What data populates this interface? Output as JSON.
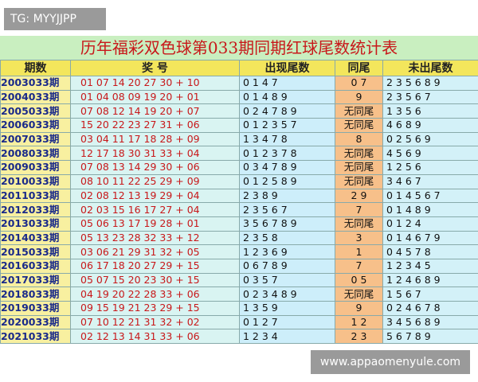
{
  "watermark_top": "TG: MYYJJPP",
  "watermark_bottom": "www.appaomenyule.com",
  "table": {
    "title": "历年福彩双色球第033期同期红球尾数统计表",
    "headers": [
      "期数",
      "奖 号",
      "出现尾数",
      "同尾",
      "未出尾数"
    ],
    "rows": [
      [
        "2003033期",
        "01 07 14 20 27 30 + 10",
        "0 1 4 7",
        "0 7",
        "2 3 5 6 8 9"
      ],
      [
        "2004033期",
        "01 04 08 09 19 20 + 01",
        "0 1 4 8 9",
        "9",
        "2 3 5 6 7"
      ],
      [
        "2005033期",
        "07 08 12 14 19 20 + 07",
        "0 2 4 7 8 9",
        "无同尾",
        "1 3 5 6"
      ],
      [
        "2006033期",
        "15 20 22 23 27 31 + 06",
        "0 1 2 3 5 7",
        "无同尾",
        "4 6 8 9"
      ],
      [
        "2007033期",
        "03 04 11 17 18 28 + 09",
        "1 3 4 7 8",
        "8",
        "0 2 5 6 9"
      ],
      [
        "2008033期",
        "12 17 18 30 31 33 + 04",
        "0 1 2 3 7 8",
        "无同尾",
        "4 5 6 9"
      ],
      [
        "2009033期",
        "07 08 13 14 29 30 + 06",
        "0 3 4 7 8 9",
        "无同尾",
        "1 2 5 6"
      ],
      [
        "2010033期",
        "08 10 11 22 25 29 + 09",
        "0 1 2 5 8 9",
        "无同尾",
        "3 4 6 7"
      ],
      [
        "2011033期",
        "02 08 12 13 19 29 + 04",
        "2 3 8 9",
        "2 9",
        "0 1 4 5 6 7"
      ],
      [
        "2012033期",
        "02 03 15 16 17 27 + 04",
        "2 3 5 6 7",
        "7",
        "0 1 4 8 9"
      ],
      [
        "2013033期",
        "05 06 13 17 19 28 + 01",
        "3 5 6 7 8 9",
        "无同尾",
        "0 1 2 4"
      ],
      [
        "2014033期",
        "05 13 23 28 32 33 + 12",
        "2 3 5 8",
        "3",
        "0 1 4 6 7 9"
      ],
      [
        "2015033期",
        "03 06 21 29 31 32 + 05",
        "1 2 3 6 9",
        "1",
        "0 4 5 7 8"
      ],
      [
        "2016033期",
        "06 17 18 20 27 29 + 15",
        "0 6 7 8 9",
        "7",
        "1 2 3 4 5"
      ],
      [
        "2017033期",
        "05 07 15 20 23 30 + 15",
        "0 3 5 7",
        "0 5",
        "1 2 4 6 8 9"
      ],
      [
        "2018033期",
        "04 19 20 22 28 33 + 06",
        "0 2 3 4 8 9",
        "无同尾",
        "1 5 6 7"
      ],
      [
        "2019033期",
        "09 15 19 21 23 29 + 15",
        "1 3 5 9",
        "9",
        "0 2 4 6 7 8"
      ],
      [
        "2020033期",
        "07 10 12 21 31 32 + 02",
        "0 1 2 7",
        "1 2",
        "3 4 5 6 8 9"
      ],
      [
        "2021033期",
        "02 12 13 14 31 33 + 06",
        "1 2 3 4",
        "2 3",
        "5 6 7 8 9"
      ]
    ]
  }
}
